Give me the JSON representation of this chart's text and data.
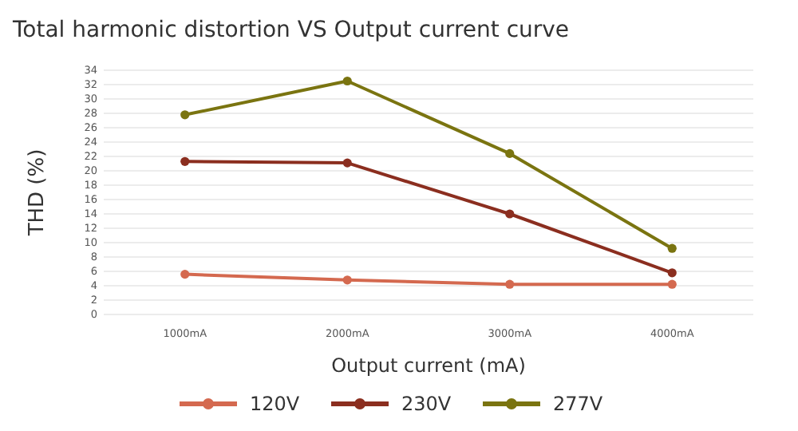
{
  "chart_data": {
    "type": "line",
    "title": "Total harmonic distortion VS Output current curve",
    "xlabel": "Output current (mA)",
    "ylabel": "THD (%)",
    "categories": [
      "1000mA",
      "2000mA",
      "3000mA",
      "4000mA"
    ],
    "series": [
      {
        "name": "120V",
        "color": "#d4694f",
        "values": [
          5.6,
          4.8,
          4.2,
          4.2
        ]
      },
      {
        "name": "230V",
        "color": "#8b2e1f",
        "values": [
          21.3,
          21.1,
          14,
          5.8
        ]
      },
      {
        "name": "277V",
        "color": "#7a7410",
        "values": [
          27.8,
          32.5,
          22.4,
          9.2
        ]
      }
    ],
    "ylim": [
      0,
      34
    ],
    "yticks": [
      0,
      2,
      4,
      6,
      8,
      10,
      12,
      14,
      16,
      18,
      20,
      22,
      24,
      26,
      28,
      30,
      32,
      34
    ],
    "grid": "y",
    "legend": "bottom",
    "marker": "circle",
    "line_style": "solid"
  }
}
